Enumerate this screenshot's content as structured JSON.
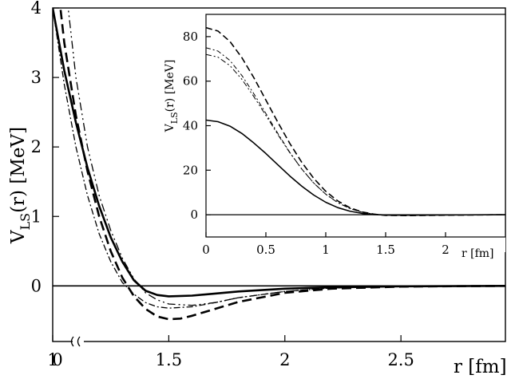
{
  "chart_data": [
    {
      "type": "line",
      "ylabel_main": "V",
      "ylabel_sub": "LS",
      "ylabel_rest": "(r) [MeV]",
      "xlabel": "r [fm]",
      "xlim": [
        1.0,
        2.95
      ],
      "ylim": [
        -0.8,
        4.0
      ],
      "axis_break": true,
      "x_ticks": [
        1,
        1.5,
        2,
        2.5
      ],
      "x_tick_labels": [
        "1",
        "1.5",
        "2",
        "2.5"
      ],
      "x_origin_label": "0",
      "y_ticks": [
        0,
        1,
        2,
        3,
        4
      ],
      "y_tick_labels": [
        "0",
        "1",
        "2",
        "3",
        "4"
      ],
      "zero_line": true,
      "series": [
        {
          "style": "solid",
          "x": [
            1.0,
            1.05,
            1.1,
            1.15,
            1.2,
            1.25,
            1.3,
            1.35,
            1.4,
            1.45,
            1.5,
            1.6,
            1.7,
            1.8,
            2.0,
            2.2,
            2.5,
            2.95
          ],
          "y": [
            4.0,
            3.1,
            2.35,
            1.7,
            1.15,
            0.7,
            0.35,
            0.08,
            -0.07,
            -0.13,
            -0.15,
            -0.14,
            -0.11,
            -0.08,
            -0.04,
            -0.02,
            -0.005,
            0.0
          ]
        },
        {
          "style": "dashed",
          "x": [
            1.0,
            1.05,
            1.1,
            1.15,
            1.2,
            1.25,
            1.3,
            1.35,
            1.4,
            1.45,
            1.5,
            1.55,
            1.6,
            1.7,
            1.8,
            2.0,
            2.2,
            2.5,
            2.95
          ],
          "y": [
            5.0,
            3.5,
            2.45,
            1.65,
            1.0,
            0.5,
            0.12,
            -0.15,
            -0.33,
            -0.44,
            -0.48,
            -0.47,
            -0.43,
            -0.33,
            -0.23,
            -0.1,
            -0.04,
            -0.01,
            0.0
          ]
        },
        {
          "style": "dash-dot",
          "x": [
            1.0,
            1.05,
            1.1,
            1.15,
            1.2,
            1.25,
            1.3,
            1.35,
            1.4,
            1.45,
            1.5,
            1.6,
            1.7,
            1.8,
            2.0,
            2.2,
            2.5,
            2.95
          ],
          "y": [
            4.0,
            2.9,
            2.0,
            1.3,
            0.75,
            0.35,
            0.05,
            -0.12,
            -0.24,
            -0.3,
            -0.32,
            -0.3,
            -0.24,
            -0.17,
            -0.08,
            -0.03,
            -0.01,
            0.0
          ]
        },
        {
          "style": "dash-dot-wide",
          "x": [
            1.0,
            1.05,
            1.1,
            1.15,
            1.2,
            1.25,
            1.3,
            1.35,
            1.4,
            1.45,
            1.5,
            1.6,
            1.7,
            1.8,
            2.0,
            2.2,
            2.5,
            2.95
          ],
          "y": [
            6.5,
            4.5,
            3.0,
            2.0,
            1.3,
            0.8,
            0.4,
            0.1,
            -0.1,
            -0.2,
            -0.26,
            -0.28,
            -0.24,
            -0.17,
            -0.08,
            -0.03,
            -0.01,
            0.0
          ]
        }
      ]
    },
    {
      "type": "line",
      "role": "inset",
      "ylabel_main": "V",
      "ylabel_sub": "LS",
      "ylabel_rest": "(r) [MeV]",
      "xlabel": "r [fm]",
      "xlim": [
        0,
        2.5
      ],
      "ylim": [
        -10,
        90
      ],
      "x_ticks": [
        0,
        0.5,
        1,
        1.5,
        2
      ],
      "x_tick_labels": [
        "0",
        "0.5",
        "1",
        "1.5",
        "2"
      ],
      "y_ticks": [
        0,
        20,
        40,
        60,
        80
      ],
      "y_tick_labels": [
        "0",
        "20",
        "40",
        "60",
        "80"
      ],
      "zero_line": true,
      "series": [
        {
          "style": "solid",
          "x": [
            0,
            0.1,
            0.2,
            0.3,
            0.4,
            0.5,
            0.6,
            0.7,
            0.8,
            0.9,
            1.0,
            1.1,
            1.2,
            1.3,
            1.4,
            1.5,
            1.7,
            2.0,
            2.5
          ],
          "y": [
            42.5,
            41.8,
            39.8,
            36.5,
            32.2,
            27.5,
            22.4,
            17.4,
            12.8,
            8.8,
            5.6,
            3.2,
            1.6,
            0.6,
            0.1,
            -0.1,
            -0.2,
            -0.1,
            0.0
          ]
        },
        {
          "style": "dashed",
          "x": [
            0,
            0.1,
            0.2,
            0.3,
            0.4,
            0.5,
            0.6,
            0.7,
            0.8,
            0.9,
            1.0,
            1.1,
            1.2,
            1.3,
            1.4,
            1.5,
            1.7,
            2.0,
            2.5
          ],
          "y": [
            84.0,
            82.5,
            77.8,
            70.5,
            61.5,
            51.5,
            41.5,
            32.0,
            23.5,
            16.3,
            10.5,
            6.2,
            3.2,
            1.3,
            0.3,
            -0.3,
            -0.4,
            -0.2,
            0.0
          ]
        },
        {
          "style": "dash-dot",
          "x": [
            0,
            0.1,
            0.2,
            0.3,
            0.4,
            0.5,
            0.6,
            0.7,
            0.8,
            0.9,
            1.0,
            1.1,
            1.2,
            1.3,
            1.4,
            1.5,
            1.7,
            2.0,
            2.5
          ],
          "y": [
            75.0,
            73.5,
            69.3,
            62.5,
            54.3,
            45.5,
            36.5,
            28.0,
            20.5,
            14.2,
            9.2,
            5.4,
            2.8,
            1.1,
            0.2,
            -0.2,
            -0.3,
            -0.1,
            0.0
          ]
        },
        {
          "style": "dash-dot-wide",
          "x": [
            0,
            0.1,
            0.2,
            0.3,
            0.4,
            0.5,
            0.6,
            0.7,
            0.8,
            0.9,
            1.0,
            1.1,
            1.2,
            1.3,
            1.4,
            1.5,
            1.7,
            2.0,
            2.5
          ],
          "y": [
            72.0,
            70.8,
            67.0,
            60.8,
            53.0,
            44.6,
            36.0,
            27.8,
            20.5,
            14.2,
            9.2,
            5.5,
            2.9,
            1.2,
            0.3,
            -0.2,
            -0.3,
            -0.1,
            0.0
          ]
        }
      ]
    }
  ]
}
